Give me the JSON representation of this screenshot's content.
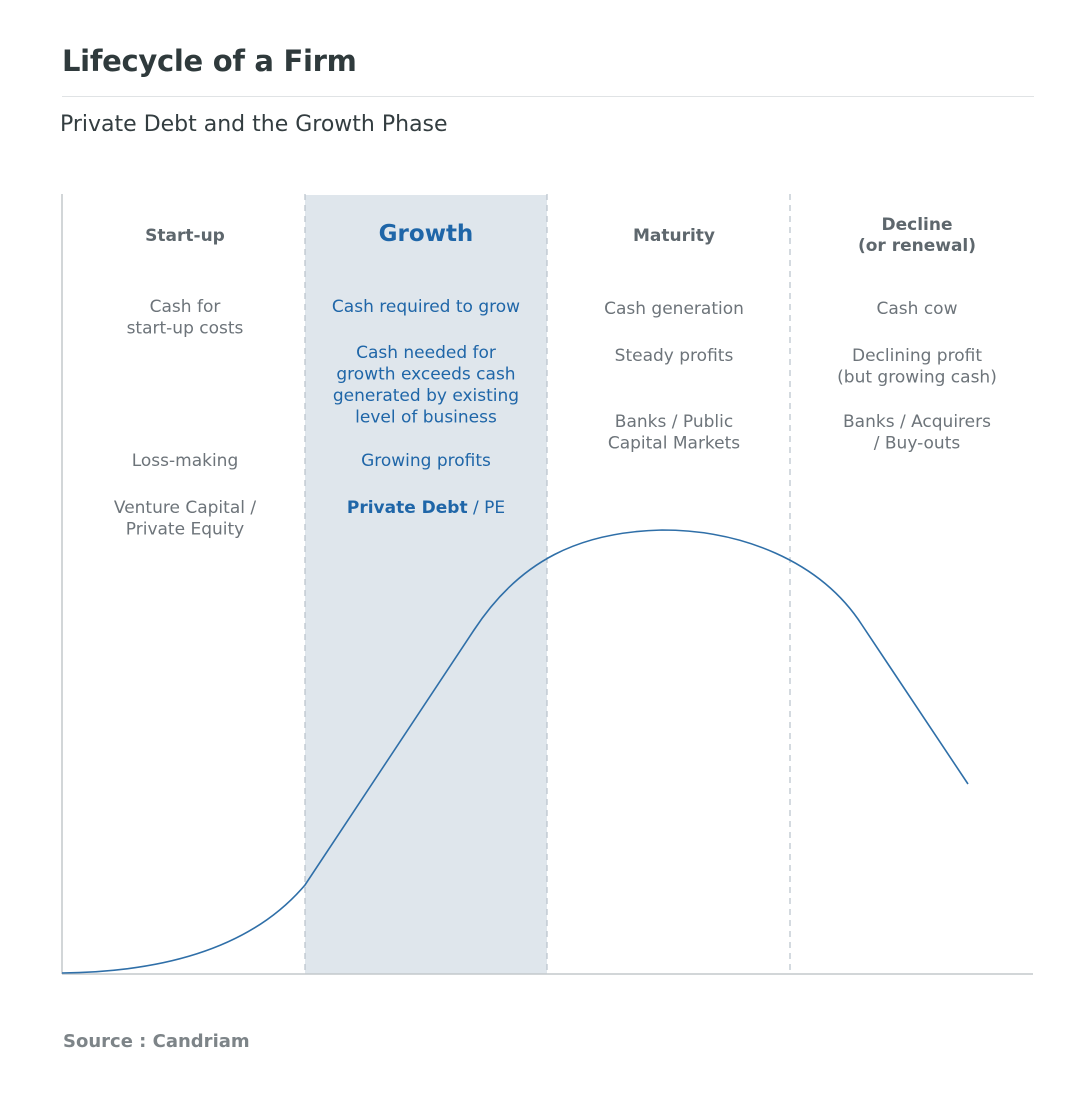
{
  "title": "Lifecycle of a Firm",
  "subtitle": "Private Debt and the Growth Phase",
  "source": "Source : Candriam",
  "colors": {
    "highlight_band": "#dfe6ec",
    "accent": "#1f66a8",
    "curve": "#2f6fa8",
    "text": "#6d747a",
    "heading": "#5e676d",
    "divider": "#b8c2ca",
    "axis": "#c3c8cc"
  },
  "phases": [
    {
      "id": "startup",
      "heading": [
        "Start-up"
      ],
      "cash": [
        "Cash for",
        "start-up costs"
      ],
      "profit": [
        "Loss-making"
      ],
      "funding": [
        "Venture Capital /",
        "Private Equity"
      ]
    },
    {
      "id": "growth",
      "heading": [
        "Growth"
      ],
      "cash": [
        "Cash required to grow"
      ],
      "cash_detail": [
        "Cash needed for",
        "growth exceeds cash",
        "generated by existing",
        "level of business"
      ],
      "profit": [
        "Growing profits"
      ],
      "funding_bold": "Private Debt",
      "funding_rest": " / PE",
      "highlighted": true
    },
    {
      "id": "maturity",
      "heading": [
        "Maturity"
      ],
      "cash": [
        "Cash generation"
      ],
      "profit": [
        "Steady profits"
      ],
      "funding": [
        "Banks / Public",
        "Capital Markets"
      ]
    },
    {
      "id": "decline",
      "heading": [
        "Decline",
        "(or renewal)"
      ],
      "cash": [
        "Cash cow"
      ],
      "profit": [
        "Declining profit",
        "(but growing cash)"
      ],
      "funding": [
        "Banks / Acquirers",
        "/ Buy-outs"
      ]
    }
  ]
}
